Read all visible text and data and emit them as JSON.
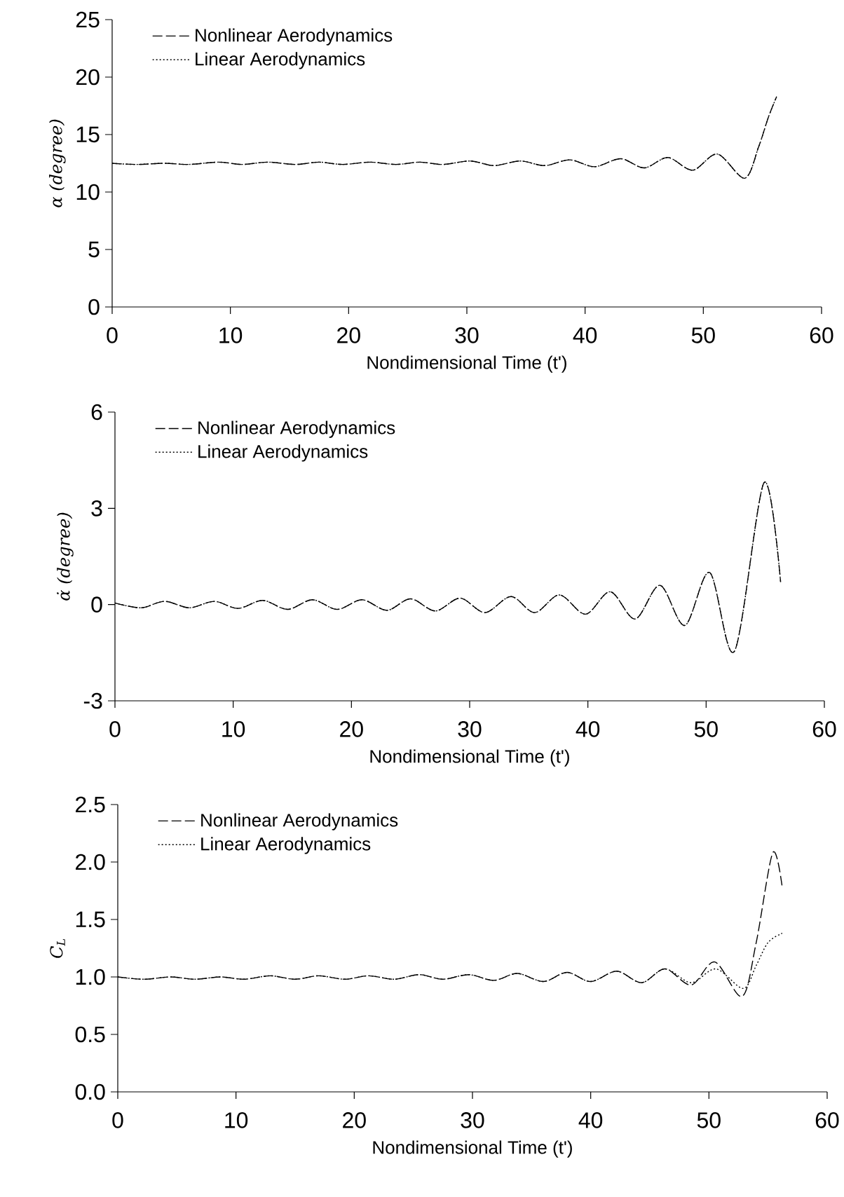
{
  "chart_data": [
    {
      "type": "line",
      "xlabel": "Nondimensional Time (t')",
      "ylabel": "α (degree)",
      "xlim": [
        0,
        60
      ],
      "xticks": [
        0,
        10,
        20,
        30,
        40,
        50,
        60
      ],
      "ylim": [
        0,
        25
      ],
      "yticks": [
        0,
        5,
        10,
        15,
        20,
        25
      ],
      "legend": "top left",
      "series": [
        {
          "name": "Nonlinear Aerodynamics",
          "color": "#000000",
          "line_style": "dashed",
          "x": [
            0,
            2,
            4.5,
            6.5,
            9,
            11,
            13.2,
            15.5,
            17.5,
            19.5,
            21.8,
            24,
            26,
            28,
            30.3,
            32.3,
            34.5,
            36.6,
            38.7,
            40.8,
            43,
            45,
            47,
            49.1,
            51.2,
            53.5,
            54.7,
            55.5,
            56.2
          ],
          "values": [
            12.5,
            12.4,
            12.5,
            12.4,
            12.6,
            12.4,
            12.6,
            12.4,
            12.6,
            12.4,
            12.6,
            12.4,
            12.6,
            12.4,
            12.7,
            12.3,
            12.7,
            12.3,
            12.8,
            12.2,
            12.9,
            12.1,
            13.0,
            11.9,
            13.3,
            11.2,
            14,
            16.5,
            18.3
          ]
        },
        {
          "name": "Linear Aerodynamics",
          "color": "#000000",
          "line_style": "dotted",
          "x": [
            0,
            2,
            4.5,
            6.5,
            9,
            11,
            13.2,
            15.5,
            17.5,
            19.5,
            21.8,
            24,
            26,
            28,
            30.3,
            32.3,
            34.5,
            36.6,
            38.7,
            40.8,
            43,
            45,
            47,
            49.1,
            51.2,
            53.5,
            54.7,
            55.5,
            56.2
          ],
          "values": [
            12.5,
            12.4,
            12.5,
            12.4,
            12.6,
            12.4,
            12.6,
            12.4,
            12.6,
            12.4,
            12.6,
            12.4,
            12.6,
            12.4,
            12.7,
            12.3,
            12.7,
            12.3,
            12.8,
            12.2,
            12.9,
            12.1,
            13.0,
            11.9,
            13.3,
            11.2,
            14,
            16.5,
            18.3
          ]
        }
      ]
    },
    {
      "type": "line",
      "xlabel": "Nondimensional Time (t')",
      "ylabel": "α̇ (degree)",
      "xlim": [
        0,
        60
      ],
      "xticks": [
        0,
        10,
        20,
        30,
        40,
        50,
        60
      ],
      "ylim": [
        -3,
        6
      ],
      "yticks": [
        -3,
        0,
        3,
        6
      ],
      "legend": "top left",
      "series": [
        {
          "name": "Nonlinear Aerodynamics",
          "color": "#000000",
          "line_style": "dashed",
          "x": [
            0,
            2.2,
            4.2,
            6.3,
            8.4,
            10.4,
            12.5,
            14.6,
            16.7,
            18.8,
            20.9,
            23,
            25,
            27.1,
            29.2,
            31.3,
            33.5,
            35.5,
            37.6,
            39.8,
            41.9,
            44,
            46.1,
            48.2,
            50.3,
            52.4,
            54.9,
            56.3
          ],
          "values": [
            0.05,
            -0.1,
            0.1,
            -0.1,
            0.1,
            -0.12,
            0.13,
            -0.15,
            0.15,
            -0.15,
            0.15,
            -0.18,
            0.18,
            -0.2,
            0.2,
            -0.25,
            0.25,
            -0.25,
            0.3,
            -0.3,
            0.4,
            -0.45,
            0.6,
            -0.65,
            1.0,
            -1.45,
            3.8,
            0.7
          ]
        },
        {
          "name": "Linear Aerodynamics",
          "color": "#000000",
          "line_style": "dotted",
          "x": [
            0,
            2.2,
            4.2,
            6.3,
            8.4,
            10.4,
            12.5,
            14.6,
            16.7,
            18.8,
            20.9,
            23,
            25,
            27.1,
            29.2,
            31.3,
            33.5,
            35.5,
            37.6,
            39.8,
            41.9,
            44,
            46.1,
            48.2,
            50.3,
            52.4,
            54.9,
            56.3
          ],
          "values": [
            0.05,
            -0.1,
            0.1,
            -0.1,
            0.1,
            -0.12,
            0.13,
            -0.15,
            0.15,
            -0.15,
            0.15,
            -0.18,
            0.18,
            -0.2,
            0.2,
            -0.25,
            0.25,
            -0.25,
            0.3,
            -0.3,
            0.4,
            -0.45,
            0.6,
            -0.65,
            1.0,
            -1.45,
            3.8,
            0.7
          ]
        }
      ]
    },
    {
      "type": "line",
      "xlabel": "Nondimensional Time (t')",
      "ylabel": "C$_{L}$",
      "xlim": [
        0,
        60
      ],
      "xticks": [
        0,
        10,
        20,
        30,
        40,
        50,
        60
      ],
      "ylim": [
        0,
        2.5
      ],
      "yticks": [
        {
          "value": 0,
          "label": "0.0"
        },
        {
          "value": 0.5,
          "label": "0.5"
        },
        {
          "value": 1,
          "label": "1.0"
        },
        {
          "value": 1.5,
          "label": "1.5"
        },
        {
          "value": 2,
          "label": "2.0"
        },
        {
          "value": 2.5,
          "label": "2.5"
        }
      ],
      "legend": "top left",
      "series": [
        {
          "name": "Nonlinear Aerodynamics",
          "color": "#000000",
          "line_style": "dashed",
          "x": [
            0,
            2.2,
            4.5,
            6.5,
            8.7,
            10.7,
            12.9,
            15,
            17,
            19.2,
            21.2,
            23.4,
            25.5,
            27.5,
            29.7,
            31.8,
            33.8,
            36,
            38,
            40,
            42.2,
            44.3,
            46.3,
            48.5,
            50.5,
            52.8,
            54,
            55.4,
            56.2
          ],
          "values": [
            1.0,
            0.98,
            1.0,
            0.98,
            1.0,
            0.98,
            1.01,
            0.98,
            1.01,
            0.98,
            1.01,
            0.98,
            1.02,
            0.98,
            1.02,
            0.97,
            1.03,
            0.96,
            1.04,
            0.96,
            1.05,
            0.95,
            1.07,
            0.93,
            1.13,
            0.83,
            1.3,
            2.08,
            1.78
          ]
        },
        {
          "name": "Linear Aerodynamics",
          "color": "#000000",
          "line_style": "dotted",
          "x": [
            0,
            2.2,
            4.5,
            6.5,
            8.7,
            10.7,
            12.9,
            15,
            17,
            19.2,
            21.2,
            23.4,
            25.5,
            27.5,
            29.7,
            31.8,
            33.8,
            36,
            38,
            40,
            42.2,
            44.3,
            46.3,
            48.5,
            50.6,
            52.9,
            54,
            55,
            56.2
          ],
          "values": [
            1.0,
            0.98,
            1.0,
            0.98,
            1.0,
            0.98,
            1.01,
            0.98,
            1.01,
            0.98,
            1.01,
            0.98,
            1.02,
            0.98,
            1.02,
            0.97,
            1.03,
            0.96,
            1.04,
            0.96,
            1.05,
            0.95,
            1.07,
            0.95,
            1.07,
            0.9,
            1.1,
            1.3,
            1.38
          ]
        }
      ]
    }
  ]
}
